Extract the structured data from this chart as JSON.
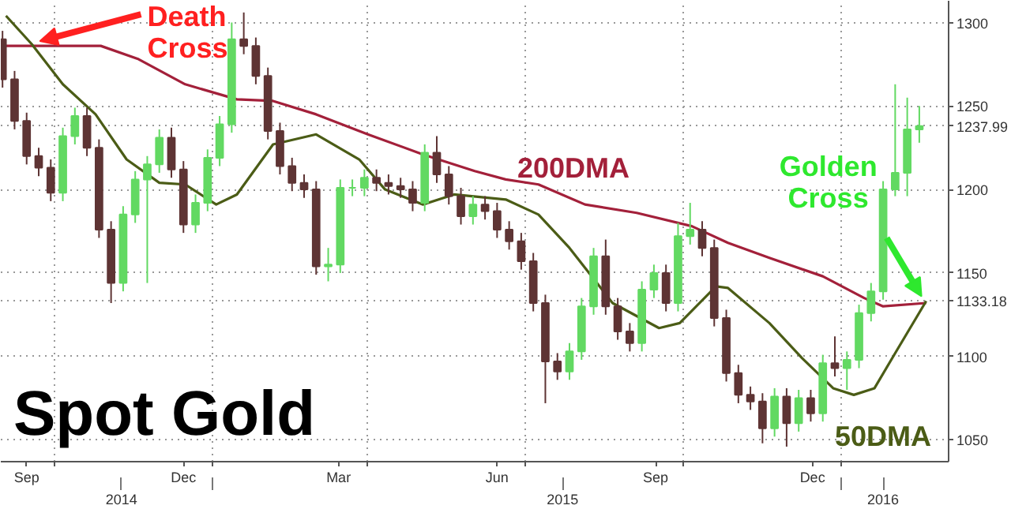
{
  "chart_data": {
    "type": "candlestick",
    "title": "Spot Gold",
    "x": [
      "2014-09-01",
      "2014-09-08",
      "2014-09-15",
      "2014-09-22",
      "2014-09-29",
      "2014-10-06",
      "2014-10-13",
      "2014-10-20",
      "2014-10-27",
      "2014-11-03",
      "2014-11-10",
      "2014-11-17",
      "2014-11-24",
      "2014-12-01",
      "2014-12-08",
      "2014-12-15",
      "2014-12-22",
      "2014-12-29",
      "2015-01-05",
      "2015-01-12",
      "2015-01-19",
      "2015-01-26",
      "2015-02-02",
      "2015-02-09",
      "2015-02-16",
      "2015-02-23",
      "2015-03-02",
      "2015-03-09",
      "2015-03-16",
      "2015-03-23",
      "2015-03-30",
      "2015-04-06",
      "2015-04-13",
      "2015-04-20",
      "2015-04-27",
      "2015-05-04",
      "2015-05-11",
      "2015-05-18",
      "2015-05-25",
      "2015-06-01",
      "2015-06-08",
      "2015-06-15",
      "2015-06-22",
      "2015-06-29",
      "2015-07-06",
      "2015-07-13",
      "2015-07-20",
      "2015-07-27",
      "2015-08-03",
      "2015-08-10",
      "2015-08-17",
      "2015-08-24",
      "2015-08-31",
      "2015-09-07",
      "2015-09-14",
      "2015-09-21",
      "2015-09-28",
      "2015-10-05",
      "2015-10-12",
      "2015-10-19",
      "2015-10-26",
      "2015-11-02",
      "2015-11-09",
      "2015-11-16",
      "2015-11-23",
      "2015-11-30",
      "2015-12-07",
      "2015-12-14",
      "2015-12-21",
      "2015-12-28",
      "2016-01-04",
      "2016-01-11",
      "2016-01-18",
      "2016-01-25",
      "2016-02-01",
      "2016-02-08",
      "2016-02-15"
    ],
    "ohlc": [
      [
        1290,
        1295,
        1261,
        1266
      ],
      [
        1266,
        1271,
        1236,
        1241
      ],
      [
        1241,
        1246,
        1215,
        1220
      ],
      [
        1220,
        1225,
        1208,
        1213
      ],
      [
        1213,
        1218,
        1193,
        1198
      ],
      [
        1198,
        1237,
        1193,
        1232
      ],
      [
        1232,
        1249,
        1227,
        1244
      ],
      [
        1244,
        1249,
        1220,
        1225
      ],
      [
        1225,
        1230,
        1171,
        1176
      ],
      [
        1176,
        1181,
        1132,
        1144
      ],
      [
        1144,
        1190,
        1139,
        1185
      ],
      [
        1185,
        1211,
        1180,
        1206
      ],
      [
        1206,
        1220,
        1144,
        1215
      ],
      [
        1215,
        1236,
        1210,
        1231
      ],
      [
        1231,
        1237,
        1207,
        1212
      ],
      [
        1212,
        1217,
        1174,
        1179
      ],
      [
        1179,
        1197,
        1174,
        1192
      ],
      [
        1192,
        1224,
        1187,
        1219
      ],
      [
        1219,
        1244,
        1214,
        1239
      ],
      [
        1239,
        1300,
        1234,
        1290
      ],
      [
        1290,
        1306,
        1281,
        1286
      ],
      [
        1286,
        1291,
        1263,
        1268
      ],
      [
        1268,
        1273,
        1230,
        1235
      ],
      [
        1235,
        1240,
        1209,
        1214
      ],
      [
        1214,
        1219,
        1199,
        1204
      ],
      [
        1204,
        1209,
        1195,
        1200
      ],
      [
        1200,
        1205,
        1149,
        1154
      ],
      [
        1154,
        1165,
        1145,
        1155
      ],
      [
        1155,
        1206,
        1150,
        1201
      ],
      [
        1201,
        1206,
        1196,
        1201
      ],
      [
        1201,
        1212,
        1196,
        1207
      ],
      [
        1207,
        1212,
        1199,
        1204
      ],
      [
        1204,
        1209,
        1197,
        1202
      ],
      [
        1202,
        1207,
        1195,
        1200
      ],
      [
        1200,
        1205,
        1187,
        1192
      ],
      [
        1192,
        1227,
        1187,
        1222
      ],
      [
        1222,
        1232,
        1204,
        1209
      ],
      [
        1209,
        1214,
        1191,
        1196
      ],
      [
        1196,
        1201,
        1179,
        1184
      ],
      [
        1184,
        1196,
        1179,
        1191
      ],
      [
        1191,
        1196,
        1182,
        1187
      ],
      [
        1187,
        1192,
        1171,
        1176
      ],
      [
        1176,
        1181,
        1164,
        1169
      ],
      [
        1169,
        1174,
        1152,
        1157
      ],
      [
        1157,
        1162,
        1127,
        1132
      ],
      [
        1132,
        1137,
        1072,
        1097
      ],
      [
        1097,
        1102,
        1086,
        1091
      ],
      [
        1091,
        1108,
        1086,
        1103
      ],
      [
        1103,
        1135,
        1098,
        1130
      ],
      [
        1130,
        1165,
        1125,
        1160
      ],
      [
        1160,
        1170,
        1125,
        1130
      ],
      [
        1130,
        1135,
        1110,
        1115
      ],
      [
        1115,
        1120,
        1103,
        1108
      ],
      [
        1108,
        1145,
        1103,
        1140
      ],
      [
        1140,
        1155,
        1135,
        1150
      ],
      [
        1150,
        1155,
        1127,
        1132
      ],
      [
        1132,
        1180,
        1127,
        1172
      ],
      [
        1172,
        1192,
        1167,
        1176
      ],
      [
        1176,
        1181,
        1160,
        1165
      ],
      [
        1165,
        1170,
        1118,
        1123
      ],
      [
        1123,
        1128,
        1085,
        1090
      ],
      [
        1090,
        1095,
        1072,
        1077
      ],
      [
        1077,
        1082,
        1068,
        1073
      ],
      [
        1073,
        1078,
        1048,
        1057
      ],
      [
        1057,
        1081,
        1052,
        1076
      ],
      [
        1076,
        1081,
        1046,
        1060
      ],
      [
        1060,
        1080,
        1055,
        1075
      ],
      [
        1075,
        1080,
        1061,
        1066
      ],
      [
        1066,
        1101,
        1061,
        1096
      ],
      [
        1096,
        1112,
        1088,
        1093
      ],
      [
        1093,
        1103,
        1080,
        1098
      ],
      [
        1098,
        1131,
        1093,
        1126
      ],
      [
        1126,
        1144,
        1121,
        1139
      ],
      [
        1139,
        1205,
        1134,
        1200
      ],
      [
        1200,
        1263,
        1196,
        1210
      ],
      [
        1210,
        1255,
        1196,
        1236
      ],
      [
        1236,
        1250,
        1228,
        1237.99
      ]
    ],
    "series": [
      {
        "name": "200DMA",
        "type": "line",
        "color": "#a3203a",
        "x": [
          "2014-09-03",
          "2014-10-28",
          "2014-11-19",
          "2014-12-16",
          "2015-01-15",
          "2015-02-05",
          "2015-03-02",
          "2015-04-01",
          "2015-05-03",
          "2015-06-02",
          "2015-06-20",
          "2015-07-09",
          "2015-08-05",
          "2015-09-04",
          "2015-10-06",
          "2015-10-27",
          "2015-11-20",
          "2015-12-21",
          "2016-01-14",
          "2016-01-25",
          "2016-02-19"
        ],
        "values": [
          1286,
          1286,
          1278,
          1263,
          1254,
          1253,
          1245,
          1233,
          1221,
          1211,
          1206,
          1203,
          1191,
          1186,
          1178,
          1168,
          1159,
          1148,
          1135,
          1130,
          1132
        ]
      },
      {
        "name": "50DMA",
        "type": "line",
        "color": "#4b5c16",
        "x": [
          "2014-09-03",
          "2014-09-18",
          "2014-10-06",
          "2014-10-25",
          "2014-11-12",
          "2014-12-01",
          "2014-12-16",
          "2015-01-03",
          "2015-01-15",
          "2015-02-05",
          "2015-03-02",
          "2015-03-27",
          "2015-04-11",
          "2015-05-03",
          "2015-05-21",
          "2015-06-20",
          "2015-07-09",
          "2015-07-27",
          "2015-08-21",
          "2015-09-17",
          "2015-09-29",
          "2015-10-20",
          "2015-10-27",
          "2015-11-20",
          "2015-12-09",
          "2015-12-27",
          "2016-01-08",
          "2016-01-20",
          "2016-02-01",
          "2016-02-19"
        ],
        "values": [
          1304,
          1287,
          1263,
          1245,
          1218,
          1204,
          1203,
          1191,
          1197,
          1227,
          1233,
          1218,
          1200,
          1191,
          1197,
          1194,
          1185,
          1165,
          1132,
          1117,
          1120,
          1142,
          1141,
          1120,
          1099,
          1081,
          1077,
          1081,
          1102,
          1133.18
        ]
      }
    ],
    "xlim": [
      "2014-08-31",
      "2016-03-03"
    ],
    "xticks": [
      {
        "value": "2014-09-15",
        "label": "Sep"
      },
      {
        "value": "2014-10-01",
        "label": null
      },
      {
        "value": "2014-12-15",
        "label": "Dec"
      },
      {
        "value": "2015-01-01",
        "label": null
      },
      {
        "value": "2015-03-15",
        "label": "Mar"
      },
      {
        "value": "2015-04-01",
        "label": null
      },
      {
        "value": "2015-06-15",
        "label": "Jun"
      },
      {
        "value": "2015-07-01",
        "label": null
      },
      {
        "value": "2015-09-15",
        "label": "Sep"
      },
      {
        "value": "2015-10-01",
        "label": null
      },
      {
        "value": "2015-12-15",
        "label": "Dec"
      },
      {
        "value": "2016-01-01",
        "label": null
      }
    ],
    "x2lim": [
      "2014-08-31",
      "2016-03-03"
    ],
    "x2ticks": [
      {
        "value": "2014-11-09",
        "label": "2014"
      },
      {
        "value": "2015-01-01",
        "label": null
      },
      {
        "value": "2015-07-23",
        "label": "2015"
      },
      {
        "value": "2016-01-01",
        "label": null
      },
      {
        "value": "2016-01-25",
        "label": "2016"
      }
    ],
    "ylim": [
      1037,
      1313
    ],
    "yticks": [
      1050,
      1100,
      1133.18,
      1150,
      1200,
      1237.99,
      1250,
      1300
    ],
    "grid": true,
    "annotations": [
      {
        "text": "Death Cross",
        "x": "2014-09-19",
        "y": 1286
      },
      {
        "text": "Golden Cross",
        "x": "2016-02-19",
        "y": 1133.18
      }
    ]
  }
}
